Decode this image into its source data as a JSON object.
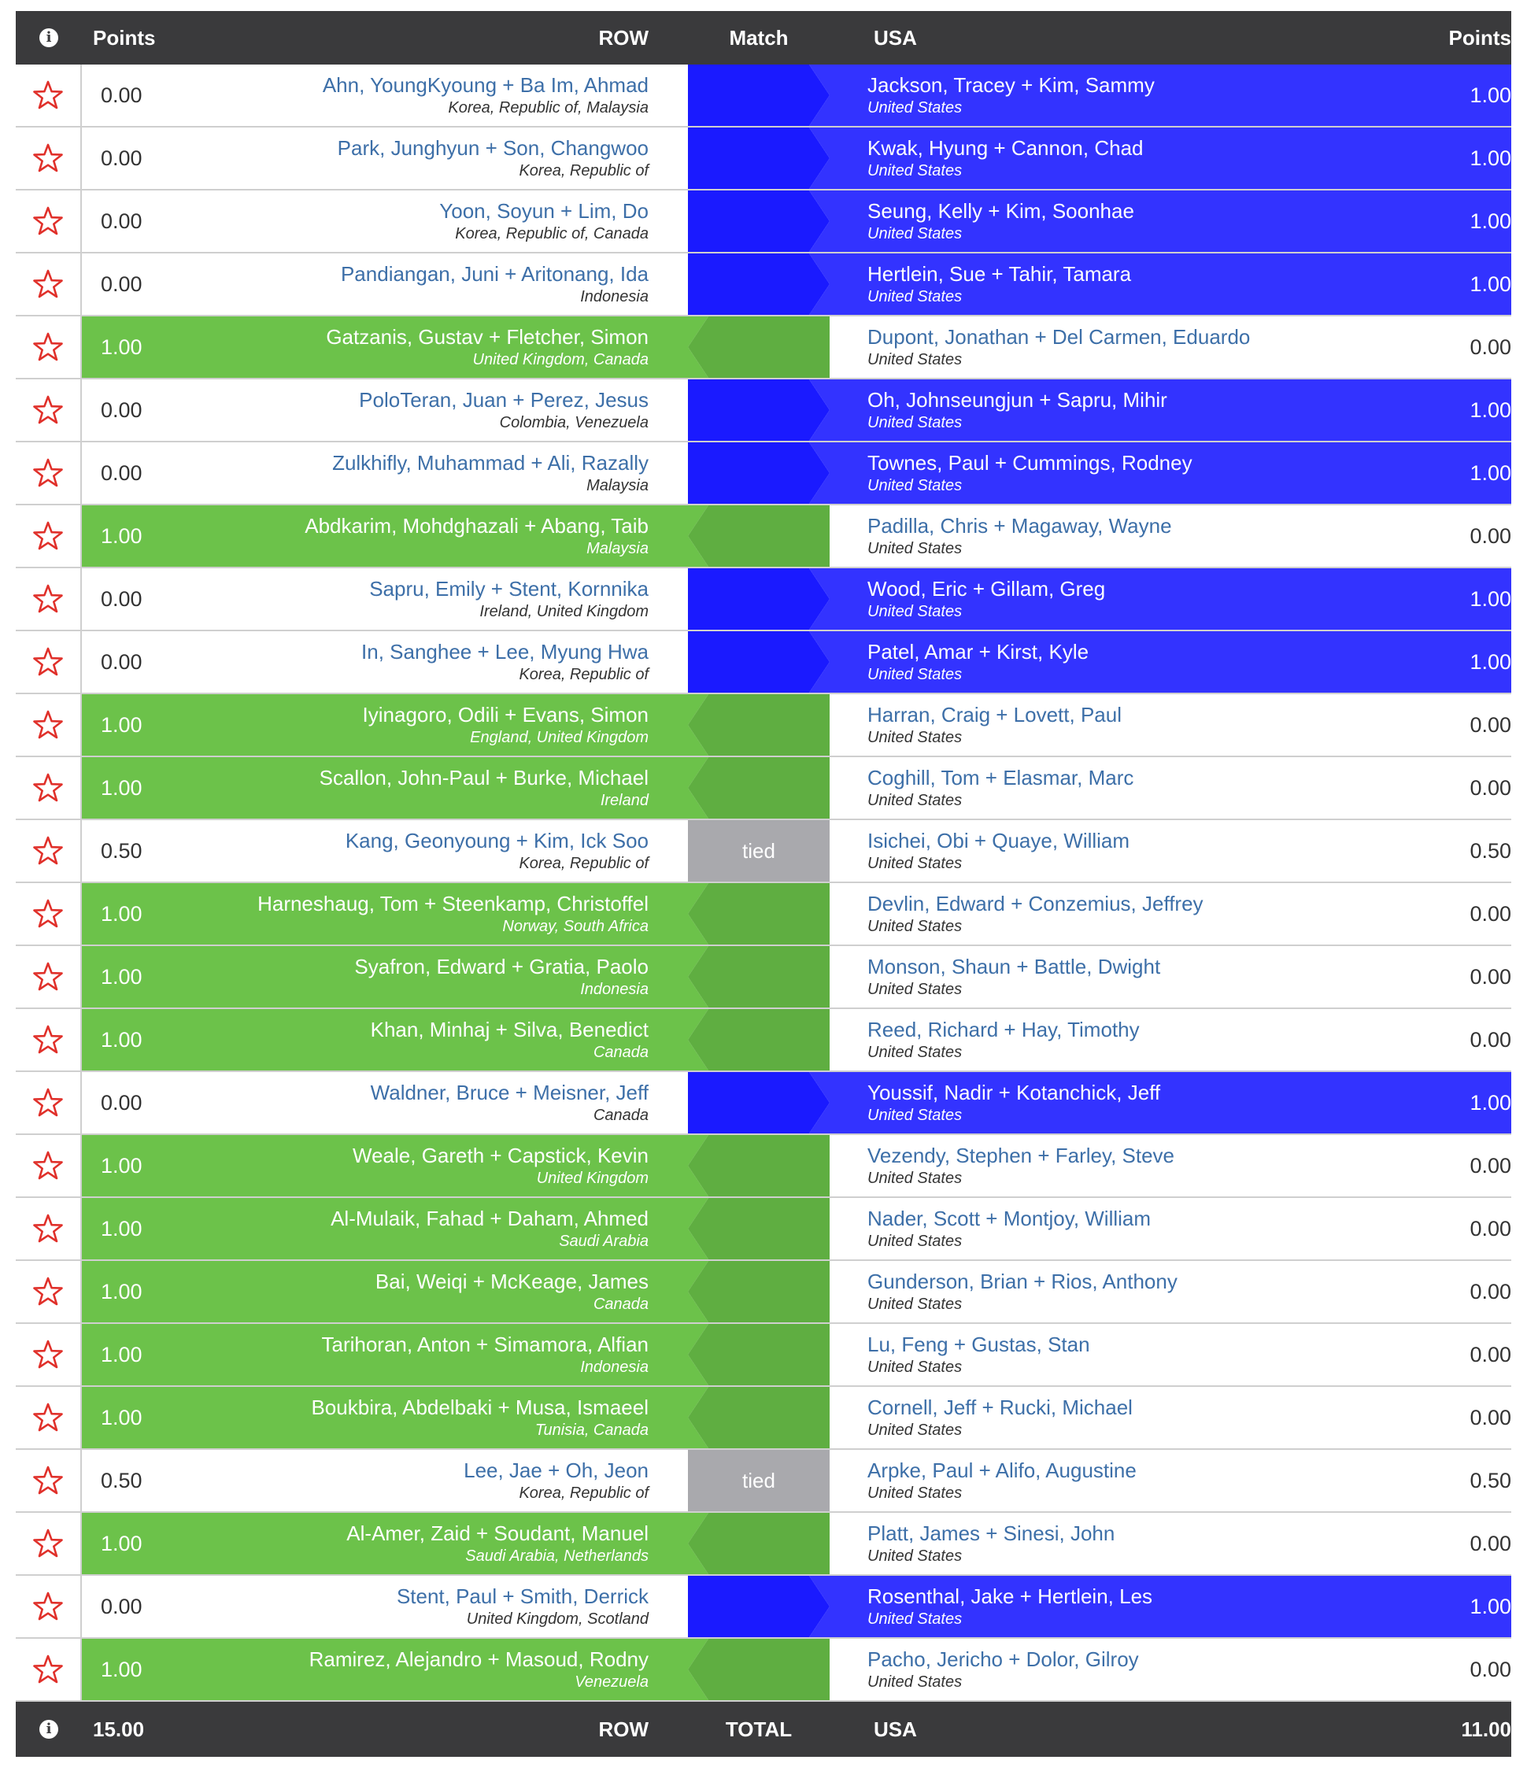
{
  "header": {
    "left_points": "Points",
    "row": "ROW",
    "match": "Match",
    "usa": "USA",
    "right_points": "Points"
  },
  "footer": {
    "left_total": "15.00",
    "row": "ROW",
    "total": "TOTAL",
    "usa": "USA",
    "right_total": "11.00"
  },
  "colors": {
    "row_win": "#6cc24a",
    "usa_win": "#3333ff",
    "tied": "#a9a9ad",
    "header_bg": "#3a3a3c",
    "star": "#e0302a"
  },
  "matches": [
    {
      "row_points": "0.00",
      "row_team": "Ahn, YoungKyoung + Ba Im, Ahmad",
      "row_country": "Korea, Republic of, Malaysia",
      "result": "usa",
      "usa_team": "Jackson, Tracey + Kim, Sammy",
      "usa_country": "United States",
      "usa_points": "1.00"
    },
    {
      "row_points": "0.00",
      "row_team": "Park, Junghyun + Son, Changwoo",
      "row_country": "Korea, Republic of",
      "result": "usa",
      "usa_team": "Kwak, Hyung + Cannon, Chad",
      "usa_country": "United States",
      "usa_points": "1.00"
    },
    {
      "row_points": "0.00",
      "row_team": "Yoon, Soyun + Lim, Do",
      "row_country": "Korea, Republic of, Canada",
      "result": "usa",
      "usa_team": "Seung, Kelly + Kim, Soonhae",
      "usa_country": "United States",
      "usa_points": "1.00"
    },
    {
      "row_points": "0.00",
      "row_team": "Pandiangan, Juni + Aritonang, Ida",
      "row_country": "Indonesia",
      "result": "usa",
      "usa_team": "Hertlein, Sue + Tahir, Tamara",
      "usa_country": "United States",
      "usa_points": "1.00"
    },
    {
      "row_points": "1.00",
      "row_team": "Gatzanis, Gustav + Fletcher, Simon",
      "row_country": "United Kingdom, Canada",
      "result": "row",
      "usa_team": "Dupont, Jonathan + Del Carmen, Eduardo",
      "usa_country": "United States",
      "usa_points": "0.00"
    },
    {
      "row_points": "0.00",
      "row_team": "PoloTeran, Juan + Perez, Jesus",
      "row_country": "Colombia, Venezuela",
      "result": "usa",
      "usa_team": "Oh, Johnseungjun + Sapru, Mihir",
      "usa_country": "United States",
      "usa_points": "1.00"
    },
    {
      "row_points": "0.00",
      "row_team": "Zulkhifly, Muhammad + Ali, Razally",
      "row_country": "Malaysia",
      "result": "usa",
      "usa_team": "Townes, Paul + Cummings, Rodney",
      "usa_country": "United States",
      "usa_points": "1.00"
    },
    {
      "row_points": "1.00",
      "row_team": "Abdkarim, Mohdghazali + Abang, Taib",
      "row_country": "Malaysia",
      "result": "row",
      "usa_team": "Padilla, Chris + Magaway, Wayne",
      "usa_country": "United States",
      "usa_points": "0.00"
    },
    {
      "row_points": "0.00",
      "row_team": "Sapru, Emily + Stent, Kornnika",
      "row_country": "Ireland, United Kingdom",
      "result": "usa",
      "usa_team": "Wood, Eric + Gillam, Greg",
      "usa_country": "United States",
      "usa_points": "1.00"
    },
    {
      "row_points": "0.00",
      "row_team": "In, Sanghee + Lee, Myung Hwa",
      "row_country": "Korea, Republic of",
      "result": "usa",
      "usa_team": "Patel, Amar + Kirst, Kyle",
      "usa_country": "United States",
      "usa_points": "1.00"
    },
    {
      "row_points": "1.00",
      "row_team": "Iyinagoro, Odili + Evans, Simon",
      "row_country": "England, United Kingdom",
      "result": "row",
      "usa_team": "Harran, Craig + Lovett, Paul",
      "usa_country": "United States",
      "usa_points": "0.00"
    },
    {
      "row_points": "1.00",
      "row_team": "Scallon, John-Paul + Burke, Michael",
      "row_country": "Ireland",
      "result": "row",
      "usa_team": "Coghill, Tom + Elasmar, Marc",
      "usa_country": "United States",
      "usa_points": "0.00"
    },
    {
      "row_points": "0.50",
      "row_team": "Kang, Geonyoung + Kim, Ick Soo",
      "row_country": "Korea, Republic of",
      "result": "tied",
      "match_label": "tied",
      "usa_team": "Isichei, Obi + Quaye, William",
      "usa_country": "United States",
      "usa_points": "0.50"
    },
    {
      "row_points": "1.00",
      "row_team": "Harneshaug, Tom + Steenkamp, Christoffel",
      "row_country": "Norway, South Africa",
      "result": "row",
      "usa_team": "Devlin, Edward + Conzemius, Jeffrey",
      "usa_country": "United States",
      "usa_points": "0.00"
    },
    {
      "row_points": "1.00",
      "row_team": "Syafron, Edward + Gratia, Paolo",
      "row_country": "Indonesia",
      "result": "row",
      "usa_team": "Monson, Shaun + Battle, Dwight",
      "usa_country": "United States",
      "usa_points": "0.00"
    },
    {
      "row_points": "1.00",
      "row_team": "Khan, Minhaj + Silva, Benedict",
      "row_country": "Canada",
      "result": "row",
      "usa_team": "Reed, Richard + Hay, Timothy",
      "usa_country": "United States",
      "usa_points": "0.00"
    },
    {
      "row_points": "0.00",
      "row_team": "Waldner, Bruce + Meisner, Jeff",
      "row_country": "Canada",
      "result": "usa",
      "usa_team": "Youssif, Nadir + Kotanchick, Jeff",
      "usa_country": "United States",
      "usa_points": "1.00"
    },
    {
      "row_points": "1.00",
      "row_team": "Weale, Gareth + Capstick, Kevin",
      "row_country": "United Kingdom",
      "result": "row",
      "usa_team": "Vezendy, Stephen + Farley, Steve",
      "usa_country": "United States",
      "usa_points": "0.00"
    },
    {
      "row_points": "1.00",
      "row_team": "Al-Mulaik, Fahad + Daham, Ahmed",
      "row_country": "Saudi Arabia",
      "result": "row",
      "usa_team": "Nader, Scott + Montjoy, William",
      "usa_country": "United States",
      "usa_points": "0.00"
    },
    {
      "row_points": "1.00",
      "row_team": "Bai, Weiqi + McKeage, James",
      "row_country": "Canada",
      "result": "row",
      "usa_team": "Gunderson, Brian + Rios, Anthony",
      "usa_country": "United States",
      "usa_points": "0.00"
    },
    {
      "row_points": "1.00",
      "row_team": "Tarihoran, Anton + Simamora, Alfian",
      "row_country": "Indonesia",
      "result": "row",
      "usa_team": "Lu, Feng + Gustas, Stan",
      "usa_country": "United States",
      "usa_points": "0.00"
    },
    {
      "row_points": "1.00",
      "row_team": "Boukbira, Abdelbaki + Musa, Ismaeel",
      "row_country": "Tunisia, Canada",
      "result": "row",
      "usa_team": "Cornell, Jeff + Rucki, Michael",
      "usa_country": "United States",
      "usa_points": "0.00"
    },
    {
      "row_points": "0.50",
      "row_team": "Lee, Jae + Oh, Jeon",
      "row_country": "Korea, Republic of",
      "result": "tied",
      "match_label": "tied",
      "usa_team": "Arpke, Paul + Alifo, Augustine",
      "usa_country": "United States",
      "usa_points": "0.50"
    },
    {
      "row_points": "1.00",
      "row_team": "Al-Amer, Zaid + Soudant, Manuel",
      "row_country": "Saudi Arabia, Netherlands",
      "result": "row",
      "usa_team": "Platt, James + Sinesi, John",
      "usa_country": "United States",
      "usa_points": "0.00"
    },
    {
      "row_points": "0.00",
      "row_team": "Stent, Paul + Smith, Derrick",
      "row_country": "United Kingdom, Scotland",
      "result": "usa",
      "usa_team": "Rosenthal, Jake + Hertlein, Les",
      "usa_country": "United States",
      "usa_points": "1.00"
    },
    {
      "row_points": "1.00",
      "row_team": "Ramirez, Alejandro + Masoud, Rodny",
      "row_country": "Venezuela",
      "result": "row",
      "usa_team": "Pacho, Jericho + Dolor, Gilroy",
      "usa_country": "United States",
      "usa_points": "0.00"
    }
  ]
}
